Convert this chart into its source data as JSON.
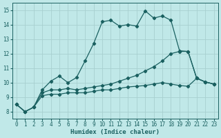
{
  "xlabel": "Humidex (Indice chaleur)",
  "bg_color": "#c0e8e8",
  "grid_color": "#a8d0d0",
  "line_color": "#1a6060",
  "xlim": [
    -0.5,
    23.5
  ],
  "ylim": [
    7.5,
    15.5
  ],
  "xticks": [
    0,
    1,
    2,
    3,
    4,
    5,
    6,
    7,
    8,
    9,
    10,
    11,
    12,
    13,
    14,
    15,
    16,
    17,
    18,
    19,
    20,
    21,
    22,
    23
  ],
  "yticks": [
    8,
    9,
    10,
    11,
    12,
    13,
    14,
    15
  ],
  "series1_x": [
    0,
    1,
    2,
    3,
    4,
    5,
    6,
    7,
    8,
    9,
    10,
    11,
    12,
    13,
    14,
    15,
    16,
    17,
    18,
    19,
    20,
    21,
    22,
    23
  ],
  "series1_y": [
    8.5,
    8.0,
    8.3,
    9.5,
    10.1,
    10.45,
    10.0,
    10.35,
    11.5,
    12.7,
    14.2,
    14.3,
    13.9,
    14.0,
    13.9,
    14.95,
    14.45,
    14.6,
    14.3,
    12.2,
    12.15,
    10.3,
    10.05,
    9.9
  ],
  "series2_x": [
    0,
    1,
    2,
    3,
    4,
    5,
    6,
    7,
    8,
    9,
    10,
    11,
    12,
    13,
    14,
    15,
    16,
    17,
    18,
    19,
    20,
    21,
    22,
    23
  ],
  "series2_y": [
    8.5,
    8.0,
    8.3,
    9.3,
    9.5,
    9.5,
    9.6,
    9.5,
    9.6,
    9.7,
    9.8,
    9.9,
    10.1,
    10.3,
    10.5,
    10.8,
    11.1,
    11.5,
    12.0,
    12.15,
    12.15,
    10.3,
    10.05,
    9.9
  ],
  "series3_x": [
    0,
    1,
    2,
    3,
    4,
    5,
    6,
    7,
    8,
    9,
    10,
    11,
    12,
    13,
    14,
    15,
    16,
    17,
    18,
    19,
    20,
    21,
    22,
    23
  ],
  "series3_y": [
    8.5,
    8.0,
    8.3,
    9.1,
    9.2,
    9.2,
    9.3,
    9.3,
    9.3,
    9.4,
    9.5,
    9.5,
    9.6,
    9.7,
    9.75,
    9.8,
    9.9,
    10.0,
    9.9,
    9.8,
    9.75,
    10.3,
    10.05,
    9.9
  ]
}
